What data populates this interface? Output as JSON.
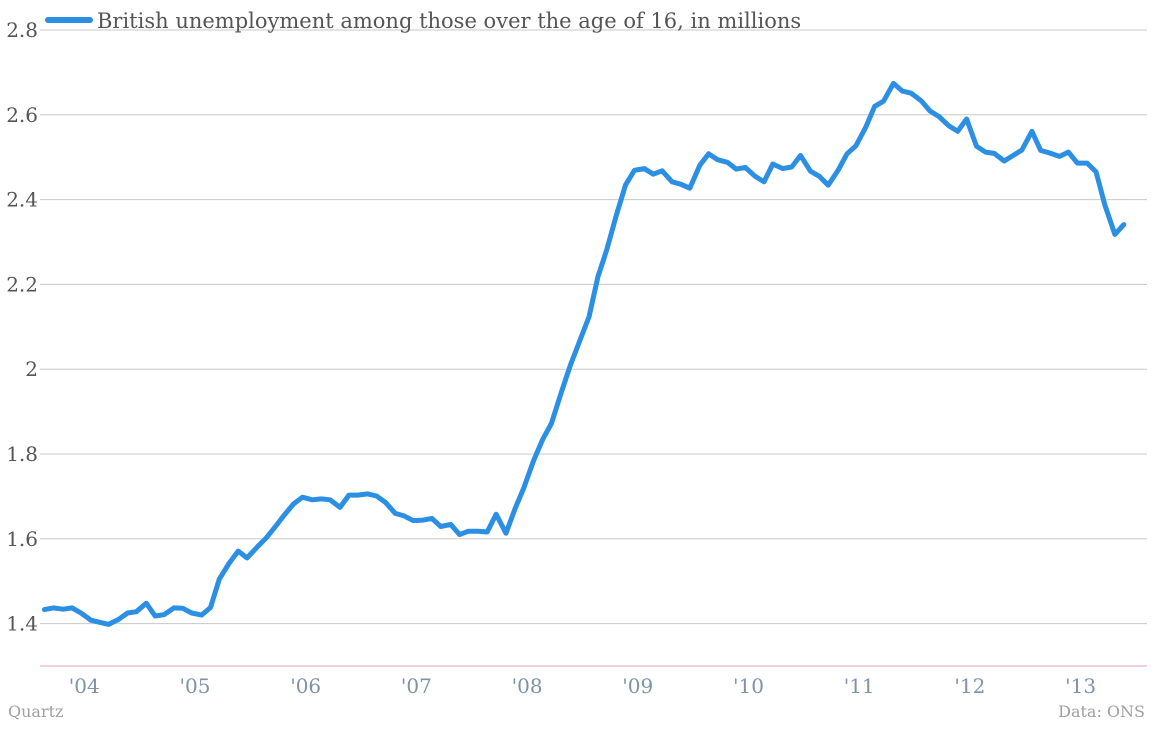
{
  "chart_data": {
    "type": "line",
    "title": "",
    "xlabel": "",
    "ylabel": "",
    "ylim": [
      1.3,
      2.8
    ],
    "yticks": [
      1.4,
      1.6,
      1.8,
      2.0,
      2.2,
      2.4,
      2.6,
      2.8
    ],
    "ytick_labels": [
      "1.4",
      "1.6",
      "1.8",
      "2",
      "2.2",
      "2.4",
      "2.6",
      "2.8"
    ],
    "xlim": [
      2003.6,
      2013.6
    ],
    "xticks": [
      2004,
      2005,
      2006,
      2007,
      2008,
      2009,
      2010,
      2011,
      2012,
      2013
    ],
    "xtick_labels": [
      "'04",
      "'05",
      "'06",
      "'07",
      "'08",
      "'09",
      "'10",
      "'11",
      "'12",
      "'13"
    ],
    "grid": true,
    "legend_position": "top-left",
    "colors": {
      "series": "#2b8fe3",
      "grid": "#c8c8c8",
      "baseline": "#e0a0d0"
    },
    "series": [
      {
        "name": "British unemployment among those over the age of 16, in millions",
        "x": [
          2003.64,
          2003.72,
          2003.81,
          2003.89,
          2003.97,
          2004.06,
          2004.14,
          2004.22,
          2004.31,
          2004.39,
          2004.47,
          2004.56,
          2004.64,
          2004.72,
          2004.81,
          2004.89,
          2004.97,
          2005.06,
          2005.14,
          2005.22,
          2005.31,
          2005.39,
          2005.47,
          2005.56,
          2005.64,
          2005.72,
          2005.81,
          2005.89,
          2005.97,
          2006.06,
          2006.14,
          2006.22,
          2006.31,
          2006.39,
          2006.47,
          2006.56,
          2006.64,
          2006.72,
          2006.81,
          2006.89,
          2006.97,
          2007.06,
          2007.14,
          2007.22,
          2007.31,
          2007.39,
          2007.47,
          2007.56,
          2007.64,
          2007.72,
          2007.81,
          2007.89,
          2007.97,
          2008.06,
          2008.14,
          2008.22,
          2008.31,
          2008.39,
          2008.47,
          2008.56,
          2008.64,
          2008.72,
          2008.81,
          2008.89,
          2008.97,
          2009.06,
          2009.14,
          2009.22,
          2009.31,
          2009.39,
          2009.47,
          2009.56,
          2009.64,
          2009.72,
          2009.81,
          2009.89,
          2009.97,
          2010.06,
          2010.14,
          2010.22,
          2010.31,
          2010.39,
          2010.47,
          2010.56,
          2010.64,
          2010.72,
          2010.81,
          2010.89,
          2010.97,
          2011.06,
          2011.14,
          2011.22,
          2011.31,
          2011.39,
          2011.47,
          2011.56,
          2011.64,
          2011.72,
          2011.81,
          2011.89,
          2011.97,
          2012.06,
          2012.14,
          2012.22,
          2012.31,
          2012.39,
          2012.47,
          2012.56,
          2012.64,
          2012.72,
          2012.81,
          2012.89,
          2012.97,
          2013.06,
          2013.14,
          2013.22,
          2013.31,
          2013.39
        ],
        "values": [
          1.433,
          1.437,
          1.434,
          1.437,
          1.425,
          1.408,
          1.403,
          1.398,
          1.41,
          1.425,
          1.428,
          1.448,
          1.418,
          1.421,
          1.437,
          1.436,
          1.425,
          1.42,
          1.438,
          1.505,
          1.543,
          1.571,
          1.555,
          1.58,
          1.601,
          1.627,
          1.657,
          1.682,
          1.698,
          1.692,
          1.694,
          1.692,
          1.674,
          1.703,
          1.703,
          1.706,
          1.701,
          1.686,
          1.66,
          1.654,
          1.643,
          1.644,
          1.648,
          1.629,
          1.634,
          1.61,
          1.618,
          1.618,
          1.616,
          1.658,
          1.613,
          1.67,
          1.72,
          1.785,
          1.834,
          1.872,
          1.946,
          2.009,
          2.063,
          2.124,
          2.218,
          2.282,
          2.366,
          2.435,
          2.469,
          2.473,
          2.46,
          2.468,
          2.442,
          2.436,
          2.427,
          2.481,
          2.508,
          2.494,
          2.488,
          2.472,
          2.476,
          2.455,
          2.442,
          2.484,
          2.473,
          2.477,
          2.504,
          2.467,
          2.455,
          2.434,
          2.469,
          2.508,
          2.527,
          2.571,
          2.62,
          2.632,
          2.674,
          2.656,
          2.651,
          2.633,
          2.609,
          2.596,
          2.574,
          2.561,
          2.59,
          2.526,
          2.512,
          2.509,
          2.491,
          2.504,
          2.517,
          2.561,
          2.516,
          2.51,
          2.502,
          2.512,
          2.486,
          2.486,
          2.465,
          2.387,
          2.318,
          2.341
        ]
      }
    ]
  },
  "footer": {
    "source_left": "Quartz",
    "source_right": "Data: ONS"
  }
}
